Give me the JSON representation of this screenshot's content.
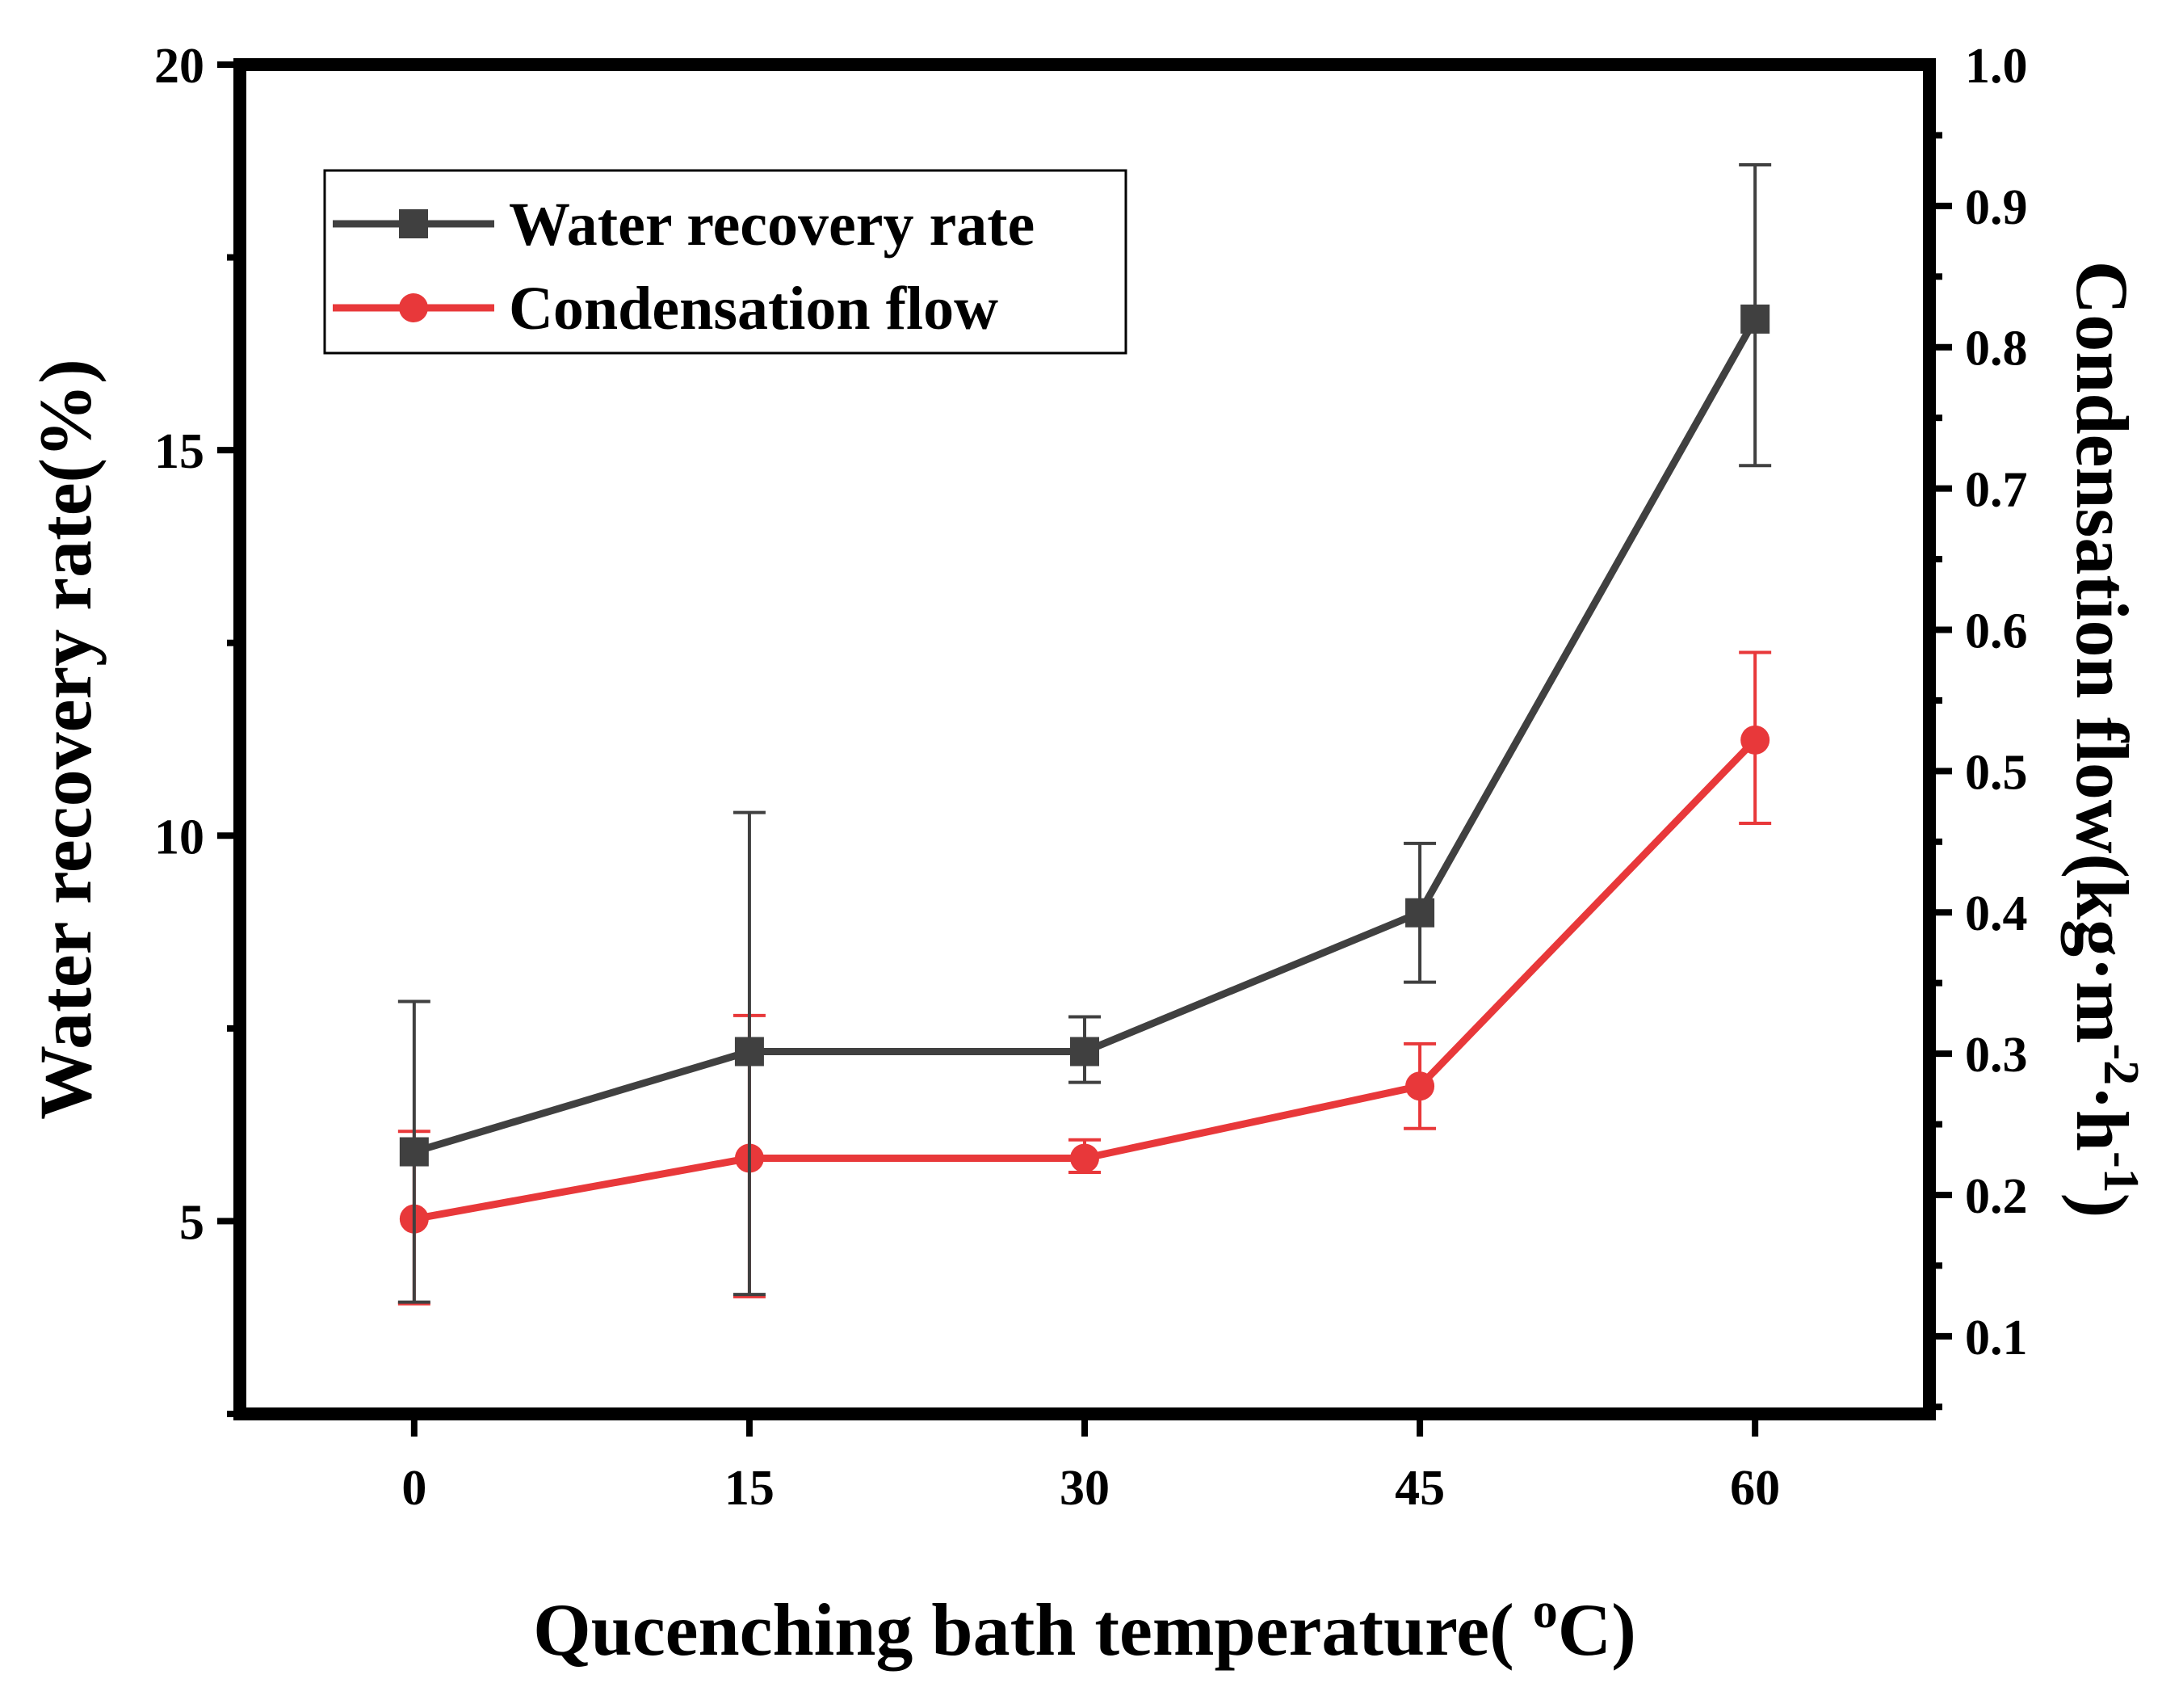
{
  "chart_data": {
    "type": "line",
    "xlabel": "Qucenching bath temperature( ",
    "xlabel_unit_sup": "o",
    "xlabel_unit_tail": "C)",
    "ylabel_left": "Water recovery rate(%)",
    "ylabel_right_main": "Condensation flow(kg·m",
    "ylabel_right_sup1": "-2",
    "ylabel_right_mid": "·h",
    "ylabel_right_sup2": "-1",
    "ylabel_right_tail": ")",
    "x": [
      0,
      15,
      30,
      45,
      60
    ],
    "x_ticks": [
      "0",
      "15",
      "30",
      "45",
      "60"
    ],
    "xlim": [
      -7.8,
      67.8
    ],
    "ylim_left": [
      2.5,
      20
    ],
    "ylim_right": [
      0.045,
      1.0
    ],
    "left_ticks": [
      5,
      10,
      15,
      20
    ],
    "right_ticks": [
      "0.1",
      "0.2",
      "0.3",
      "0.4",
      "0.5",
      "0.6",
      "0.7",
      "0.8",
      "0.9",
      "1.0"
    ],
    "grid": false,
    "legend_position": "top-left",
    "series": [
      {
        "name": "Water recovery rate",
        "axis": "left",
        "color": "#404040",
        "marker": "square",
        "values": [
          5.9,
          7.2,
          7.2,
          9.0,
          16.7
        ],
        "err_low": [
          3.95,
          4.05,
          6.8,
          8.1,
          14.8
        ],
        "err_high": [
          7.85,
          10.3,
          7.65,
          9.9,
          18.7
        ]
      },
      {
        "name": "Condensation flow",
        "axis": "right",
        "color": "#e8383a",
        "marker": "circle",
        "values": [
          0.183,
          0.226,
          0.226,
          0.277,
          0.522
        ],
        "err_low": [
          0.123,
          0.128,
          0.216,
          0.247,
          0.463
        ],
        "err_high": [
          0.245,
          0.327,
          0.239,
          0.307,
          0.584
        ]
      }
    ]
  }
}
